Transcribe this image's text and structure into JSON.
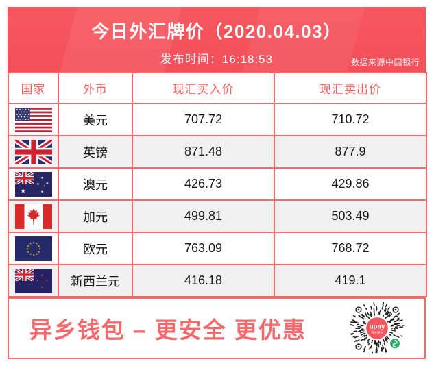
{
  "colors": {
    "header_red": "#f4535c",
    "table_border": "#f26a6a",
    "table_header_text": "#f56060",
    "row_alt_bg": "#f1f0f1",
    "slogan_red": "#f4696b",
    "qr_center_pink": "#f4565e",
    "qr_badge_green": "#2aae67"
  },
  "header": {
    "title": "今日外汇牌价（2020.04.03）",
    "publish_time": "发布时间：16:18:53",
    "source": "数据来源中国银行"
  },
  "table": {
    "columns": [
      "国家",
      "外币",
      "现汇买入价",
      "现汇卖出价"
    ],
    "rows": [
      {
        "flag": "us",
        "flag_icon": "us-flag-icon",
        "currency": "美元",
        "buy": "707.72",
        "sell": "710.72"
      },
      {
        "flag": "uk",
        "flag_icon": "uk-flag-icon",
        "currency": "英镑",
        "buy": "871.48",
        "sell": "877.9"
      },
      {
        "flag": "au",
        "flag_icon": "australia-flag-icon",
        "currency": "澳元",
        "buy": "426.73",
        "sell": "429.86"
      },
      {
        "flag": "ca",
        "flag_icon": "canada-flag-icon",
        "currency": "加元",
        "buy": "499.81",
        "sell": "503.49"
      },
      {
        "flag": "eu",
        "flag_icon": "eu-flag-icon",
        "currency": "欧元",
        "buy": "763.09",
        "sell": "768.72"
      },
      {
        "flag": "nz",
        "flag_icon": "new-zealand-flag-icon",
        "currency": "新西兰元",
        "buy": "416.18",
        "sell": "419.1"
      }
    ]
  },
  "banner": {
    "slogan": "异乡钱包 – 更安全 更优惠",
    "qr": {
      "center_label": "upay",
      "center_sublabel": "异乡钱包"
    }
  }
}
